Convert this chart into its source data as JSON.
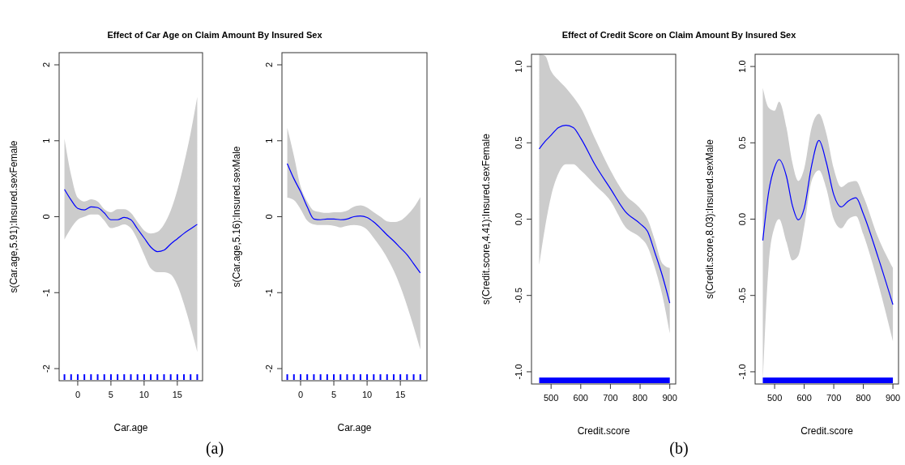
{
  "chart_data": [
    {
      "type": "line",
      "title": "Effect of Car Age on Claim Amount By Insured Sex",
      "xlabel": "Car.age",
      "ylabel": "s(Car.age,5.91):Insured.sexFemale",
      "xlim": [
        -2.8,
        18.8
      ],
      "ylim": [
        -2.16,
        2.16
      ],
      "xticks": [
        0,
        5,
        10,
        15
      ],
      "yticks": [
        -2,
        -1,
        0,
        1,
        2
      ],
      "annotations": [
        "(a)"
      ],
      "series": [
        {
          "color": "#0000ff",
          "x": [
            -2,
            -1,
            0,
            1,
            2,
            3,
            4,
            5,
            6,
            7,
            8,
            9,
            10,
            11,
            12,
            13,
            14,
            15,
            16,
            17,
            18
          ],
          "values": [
            0.36,
            0.22,
            0.11,
            0.09,
            0.13,
            0.12,
            0.05,
            -0.04,
            -0.04,
            -0.01,
            -0.04,
            -0.16,
            -0.28,
            -0.4,
            -0.46,
            -0.44,
            -0.36,
            -0.29,
            -0.22,
            -0.16,
            -0.1
          ],
          "upper": [
            1.03,
            0.55,
            0.25,
            0.2,
            0.23,
            0.2,
            0.1,
            0.06,
            0.1,
            0.1,
            0.05,
            -0.07,
            -0.18,
            -0.22,
            -0.2,
            -0.1,
            0.08,
            0.35,
            0.7,
            1.1,
            1.58
          ],
          "lower": [
            -0.3,
            -0.15,
            -0.04,
            0,
            0.03,
            0.03,
            -0.05,
            -0.15,
            -0.13,
            -0.1,
            -0.15,
            -0.3,
            -0.5,
            -0.68,
            -0.73,
            -0.73,
            -0.76,
            -0.9,
            -1.15,
            -1.45,
            -1.78
          ]
        }
      ]
    },
    {
      "type": "line",
      "xlabel": "Car.age",
      "ylabel": "s(Car.age,5.16):Insured.sexMale",
      "xlim": [
        -2.8,
        19
      ],
      "ylim": [
        -2.16,
        2.16
      ],
      "xticks": [
        0,
        5,
        10,
        15
      ],
      "yticks": [
        -2,
        -1,
        0,
        1,
        2
      ],
      "series": [
        {
          "color": "#0000ff",
          "x": [
            -2,
            -1,
            0,
            1,
            2,
            3,
            4,
            5,
            6,
            7,
            8,
            9,
            10,
            11,
            12,
            13,
            14,
            15,
            16,
            17,
            18
          ],
          "values": [
            0.7,
            0.5,
            0.33,
            0.13,
            -0.03,
            -0.04,
            -0.03,
            -0.03,
            -0.04,
            -0.03,
            0,
            0.01,
            -0.01,
            -0.07,
            -0.15,
            -0.24,
            -0.32,
            -0.41,
            -0.5,
            -0.62,
            -0.74
          ],
          "upper": [
            1.17,
            0.8,
            0.4,
            0.2,
            0.08,
            0.06,
            0.05,
            0.06,
            0.06,
            0.08,
            0.13,
            0.15,
            0.12,
            0.06,
            0,
            -0.06,
            -0.07,
            -0.05,
            0.02,
            0.12,
            0.26
          ],
          "lower": [
            0.25,
            0.22,
            0.1,
            -0.05,
            -0.1,
            -0.11,
            -0.11,
            -0.12,
            -0.14,
            -0.12,
            -0.11,
            -0.12,
            -0.17,
            -0.28,
            -0.4,
            -0.54,
            -0.71,
            -0.92,
            -1.17,
            -1.45,
            -1.75
          ]
        }
      ]
    },
    {
      "type": "line",
      "title": "Effect of Credit Score on Claim Amount By Insured Sex",
      "xlabel": "Credit.score",
      "ylabel": "s(Credit.score,4.41):Insured.sexFemale",
      "xlim": [
        434,
        920
      ],
      "ylim": [
        -1.08,
        1.08
      ],
      "xticks": [
        500,
        600,
        700,
        800,
        900
      ],
      "yticks": [
        {
          "value": -1,
          "label": "-1.0"
        },
        {
          "value": -0.5,
          "label": "-0.5"
        },
        {
          "value": 0,
          "label": "0.0"
        },
        {
          "value": 0.5,
          "label": "0.5"
        },
        {
          "value": 1,
          "label": "1.0"
        }
      ],
      "annotations": [
        "(b)"
      ],
      "series": [
        {
          "color": "#0000ff",
          "x": [
            460,
            480,
            500,
            525,
            550,
            575,
            600,
            650,
            700,
            750,
            800,
            825,
            850,
            875,
            900
          ],
          "values": [
            0.46,
            0.51,
            0.55,
            0.6,
            0.615,
            0.6,
            0.53,
            0.35,
            0.2,
            0.05,
            -0.03,
            -0.08,
            -0.22,
            -0.37,
            -0.55
          ],
          "upper": [
            1.08,
            1.07,
            0.97,
            0.91,
            0.86,
            0.8,
            0.73,
            0.52,
            0.32,
            0.16,
            0.07,
            0,
            -0.14,
            -0.29,
            -0.32
          ],
          "lower": [
            -0.3,
            -0.05,
            0.15,
            0.3,
            0.36,
            0.36,
            0.32,
            0.22,
            0.12,
            -0.05,
            -0.12,
            -0.18,
            -0.32,
            -0.5,
            -0.75
          ]
        }
      ]
    },
    {
      "type": "line",
      "xlabel": "Credit.score",
      "ylabel": "s(Credit.score,8.03):Insured.sexMale",
      "xlim": [
        434,
        919
      ],
      "ylim": [
        -1.08,
        1.08
      ],
      "xticks": [
        500,
        600,
        700,
        800,
        900
      ],
      "yticks": [
        {
          "value": -1,
          "label": "-1.0"
        },
        {
          "value": -0.5,
          "label": "-0.5"
        },
        {
          "value": 0,
          "label": "0.0"
        },
        {
          "value": 0.5,
          "label": "0.5"
        },
        {
          "value": 1,
          "label": "1.0"
        }
      ],
      "series": [
        {
          "color": "#0000ff",
          "x": [
            460,
            480,
            500,
            515,
            540,
            560,
            580,
            600,
            625,
            650,
            675,
            700,
            725,
            750,
            775,
            800,
            850,
            900
          ],
          "values": [
            -0.14,
            0.18,
            0.34,
            0.39,
            0.28,
            0.09,
            -0.005,
            0.07,
            0.35,
            0.515,
            0.37,
            0.16,
            0.08,
            0.12,
            0.14,
            0.035,
            -0.25,
            -0.56
          ],
          "upper": [
            0.86,
            0.73,
            0.71,
            0.77,
            0.6,
            0.37,
            0.25,
            0.33,
            0.6,
            0.69,
            0.56,
            0.33,
            0.21,
            0.24,
            0.25,
            0.15,
            -0.12,
            -0.32
          ],
          "lower": [
            -1.08,
            -0.3,
            -0.05,
            0,
            -0.15,
            -0.27,
            -0.24,
            -0.05,
            0.25,
            0.32,
            0.2,
            0,
            -0.06,
            0,
            0.02,
            -0.1,
            -0.42,
            -0.8
          ]
        }
      ]
    }
  ]
}
